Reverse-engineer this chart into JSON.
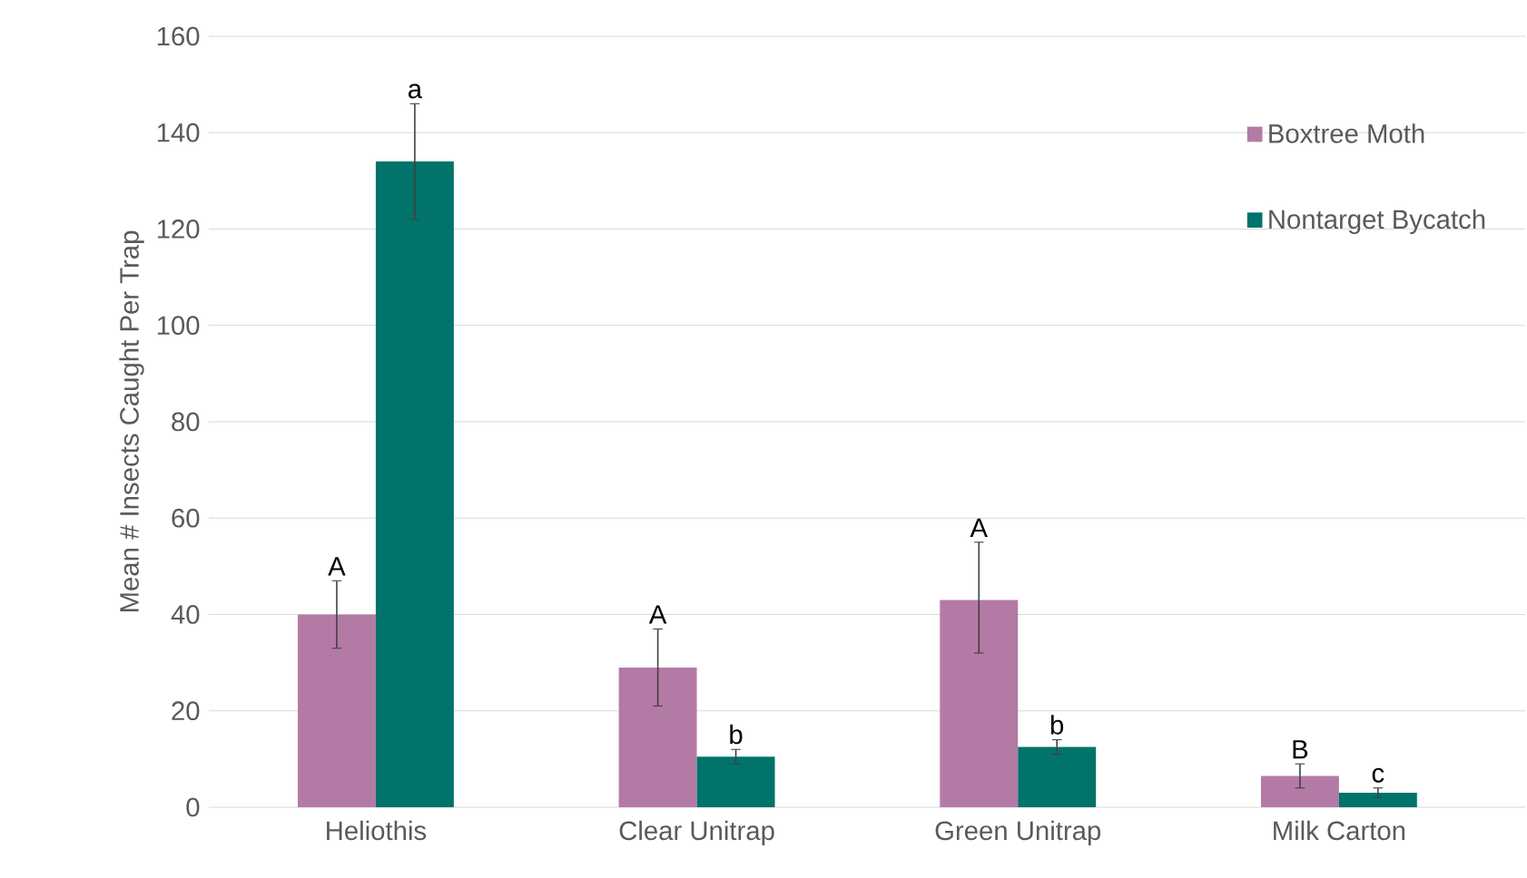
{
  "chart_data": {
    "type": "bar",
    "ylabel": "Mean # Insects Caught Per Trap",
    "categories": [
      "Heliothis",
      "Clear Unitrap",
      "Green Unitrap",
      "Milk Carton"
    ],
    "series": [
      {
        "name": "Boxtree Moth",
        "color": "#b47aa6",
        "values": [
          40,
          29,
          43,
          6.5
        ],
        "errors": [
          [
            33,
            47
          ],
          [
            21,
            37
          ],
          [
            32,
            55
          ],
          [
            4,
            9
          ]
        ]
      },
      {
        "name": "Nontarget Bycatch",
        "color": "#00736a",
        "values": [
          134,
          10.5,
          12.5,
          3
        ],
        "errors": [
          [
            122,
            146
          ],
          [
            9,
            12
          ],
          [
            11,
            14
          ],
          [
            2,
            4
          ]
        ]
      }
    ],
    "ylim": [
      0,
      160
    ],
    "yticks": [
      0,
      20,
      40,
      60,
      80,
      100,
      120,
      140,
      160
    ],
    "grid": "y",
    "legend": "top right",
    "annotations": [
      "A",
      "a",
      "A",
      "b",
      "A",
      "b",
      "B",
      "c"
    ]
  }
}
